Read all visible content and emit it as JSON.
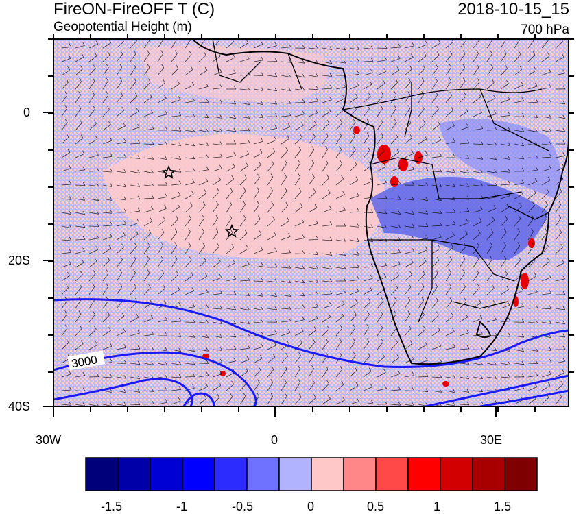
{
  "header": {
    "title_left": "FireON-FireOFF T (C)",
    "subtitle_left": "Geopotential Height (m)",
    "title_right": "2018-10-15_15",
    "subtitle_right": "700 hPa"
  },
  "axes": {
    "lat_labels": [
      "0",
      "20S",
      "40S"
    ],
    "lon_labels": [
      "30W",
      "0",
      "30E"
    ]
  },
  "contour_label": "3000",
  "colorbar": {
    "colors": [
      "#00007a",
      "#0000a8",
      "#0000d4",
      "#0000ff",
      "#2c2cff",
      "#6f72ff",
      "#b1b3ff",
      "#ffc8c8",
      "#ff8787",
      "#ff4848",
      "#ff0000",
      "#d20000",
      "#a80000",
      "#7e0000"
    ],
    "labels": [
      "-1.5",
      "-1",
      "-0.5",
      "0",
      "0.5",
      "1",
      "1.5"
    ]
  },
  "markers": [
    "star",
    "star"
  ],
  "colors": {
    "pale_blue": "#b1b3ff",
    "pale_red": "#ffc8c8",
    "contour": "#1a1aff"
  }
}
